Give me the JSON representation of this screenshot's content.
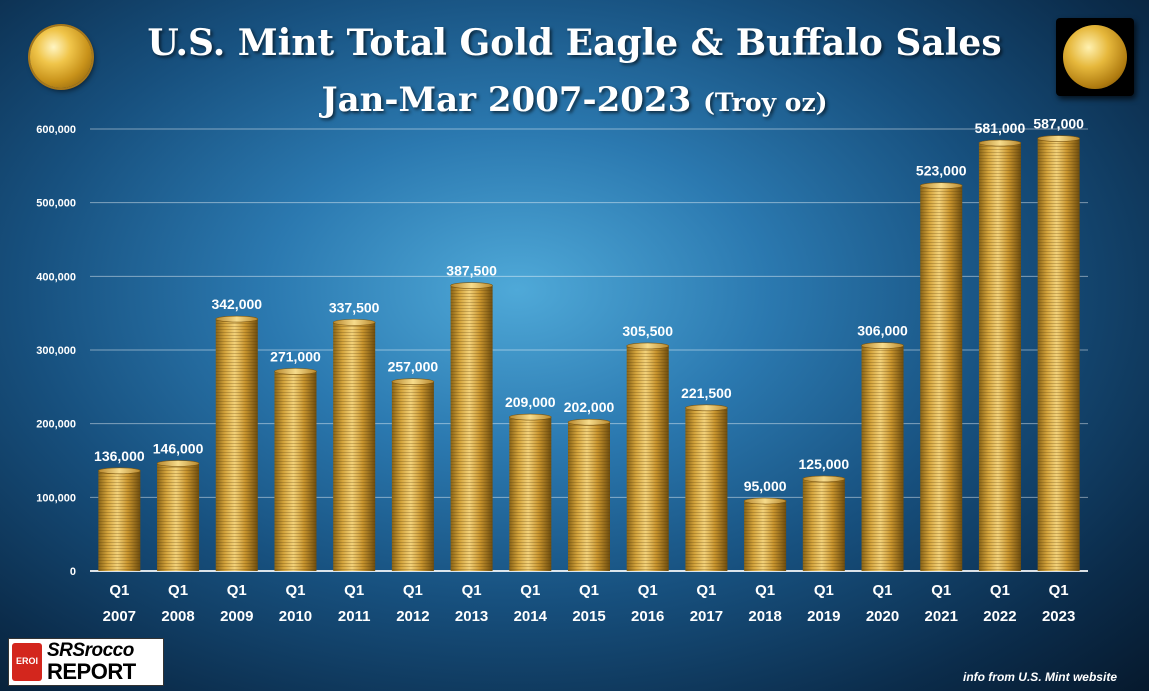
{
  "header": {
    "title_line1": "U.S. Mint Total Gold Eagle & Buffalo Sales",
    "title_line2": "Jan-Mar 2007-2023",
    "title_unit": "(Troy oz)"
  },
  "branding": {
    "logo_badge": "EROI",
    "logo_line1": "SRSrocco",
    "logo_line2": "REPORT",
    "source": "info from U.S. Mint website"
  },
  "icons": {
    "left": "gold-eagle-coin-icon",
    "right": "gold-buffalo-coin-icon"
  },
  "colors": {
    "bar": "#d4a43c",
    "bar_highlight": "#f3d27a",
    "bar_shadow": "#8a6416",
    "text": "#ffffff"
  },
  "chart_data": {
    "type": "bar",
    "title": "U.S. Mint Total Gold Eagle & Buffalo Sales Jan-Mar 2007-2023 (Troy oz)",
    "categories": [
      [
        "Q1",
        "2007"
      ],
      [
        "Q1",
        "2008"
      ],
      [
        "Q1",
        "2009"
      ],
      [
        "Q1",
        "2010"
      ],
      [
        "Q1",
        "2011"
      ],
      [
        "Q1",
        "2012"
      ],
      [
        "Q1",
        "2013"
      ],
      [
        "Q1",
        "2014"
      ],
      [
        "Q1",
        "2015"
      ],
      [
        "Q1",
        "2016"
      ],
      [
        "Q1",
        "2017"
      ],
      [
        "Q1",
        "2018"
      ],
      [
        "Q1",
        "2019"
      ],
      [
        "Q1",
        "2020"
      ],
      [
        "Q1",
        "2021"
      ],
      [
        "Q1",
        "2022"
      ],
      [
        "Q1",
        "2023"
      ]
    ],
    "values": [
      136000,
      146000,
      342000,
      271000,
      337500,
      257000,
      387500,
      209000,
      202000,
      305500,
      221500,
      95000,
      125000,
      306000,
      523000,
      581000,
      587000
    ],
    "labels": [
      "136,000",
      "146,000",
      "342,000",
      "271,000",
      "337,500",
      "257,000",
      "387,500",
      "209,000",
      "202,000",
      "305,500",
      "221,500",
      "95,000",
      "125,000",
      "306,000",
      "523,000",
      "581,000",
      "587,000"
    ],
    "y_ticks": [
      0,
      100000,
      200000,
      300000,
      400000,
      500000,
      600000
    ],
    "y_tick_labels": [
      "0",
      "100,000",
      "200,000",
      "300,000",
      "400,000",
      "500,000",
      "600,000"
    ],
    "ylim": [
      0,
      600000
    ],
    "grid": true,
    "legend": "none"
  }
}
